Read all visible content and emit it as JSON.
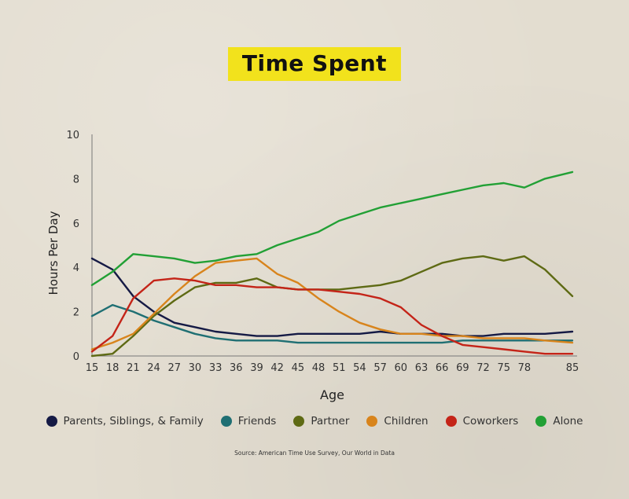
{
  "chart_data": {
    "type": "line",
    "title": "Time Spent",
    "xlabel": "Age",
    "ylabel": "Hours Per Day",
    "xlim": [
      15,
      85
    ],
    "ylim": [
      0,
      10
    ],
    "xticks": [
      15,
      18,
      21,
      24,
      27,
      30,
      33,
      36,
      39,
      42,
      45,
      48,
      51,
      54,
      57,
      60,
      63,
      66,
      69,
      72,
      75,
      78,
      85
    ],
    "yticks": [
      0,
      2,
      4,
      6,
      8,
      10
    ],
    "grid": false,
    "legend_position": "bottom",
    "x": [
      15,
      18,
      21,
      24,
      27,
      30,
      33,
      36,
      39,
      42,
      45,
      48,
      51,
      54,
      57,
      60,
      63,
      66,
      69,
      72,
      75,
      78,
      81,
      85
    ],
    "series": [
      {
        "name": "Parents, Siblings, & Family",
        "color": "#151a45",
        "values": [
          4.4,
          3.9,
          2.7,
          2.0,
          1.5,
          1.3,
          1.1,
          1.0,
          0.9,
          0.9,
          1.0,
          1.0,
          1.0,
          1.0,
          1.1,
          1.0,
          1.0,
          1.0,
          0.9,
          0.9,
          1.0,
          1.0,
          1.0,
          1.1
        ]
      },
      {
        "name": "Friends",
        "color": "#1f6f73",
        "values": [
          1.8,
          2.3,
          2.0,
          1.6,
          1.3,
          1.0,
          0.8,
          0.7,
          0.7,
          0.7,
          0.6,
          0.6,
          0.6,
          0.6,
          0.6,
          0.6,
          0.6,
          0.6,
          0.7,
          0.7,
          0.7,
          0.7,
          0.7,
          0.7
        ]
      },
      {
        "name": "Partner",
        "color": "#5e6a14",
        "values": [
          0.0,
          0.1,
          0.9,
          1.8,
          2.5,
          3.1,
          3.3,
          3.3,
          3.5,
          3.1,
          3.0,
          3.0,
          3.0,
          3.1,
          3.2,
          3.4,
          3.8,
          4.2,
          4.4,
          4.5,
          4.3,
          4.5,
          3.9,
          2.7
        ]
      },
      {
        "name": "Children",
        "color": "#d8841c",
        "values": [
          0.3,
          0.6,
          1.0,
          1.9,
          2.8,
          3.6,
          4.2,
          4.3,
          4.4,
          3.7,
          3.3,
          2.6,
          2.0,
          1.5,
          1.2,
          1.0,
          1.0,
          0.9,
          0.9,
          0.8,
          0.8,
          0.8,
          0.7,
          0.6
        ]
      },
      {
        "name": "Coworkers",
        "color": "#c42418",
        "values": [
          0.2,
          0.9,
          2.6,
          3.4,
          3.5,
          3.4,
          3.2,
          3.2,
          3.1,
          3.1,
          3.0,
          3.0,
          2.9,
          2.8,
          2.6,
          2.2,
          1.4,
          0.9,
          0.5,
          0.4,
          0.3,
          0.2,
          0.1,
          0.1
        ]
      },
      {
        "name": "Alone",
        "color": "#22a035",
        "values": [
          3.2,
          3.8,
          4.6,
          4.5,
          4.4,
          4.2,
          4.3,
          4.5,
          4.6,
          5.0,
          5.3,
          5.6,
          6.1,
          6.4,
          6.7,
          6.9,
          7.1,
          7.3,
          7.5,
          7.7,
          7.8,
          7.6,
          8.0,
          8.3
        ]
      }
    ],
    "source": "Source: American Time Use Survey, Our World in Data"
  }
}
